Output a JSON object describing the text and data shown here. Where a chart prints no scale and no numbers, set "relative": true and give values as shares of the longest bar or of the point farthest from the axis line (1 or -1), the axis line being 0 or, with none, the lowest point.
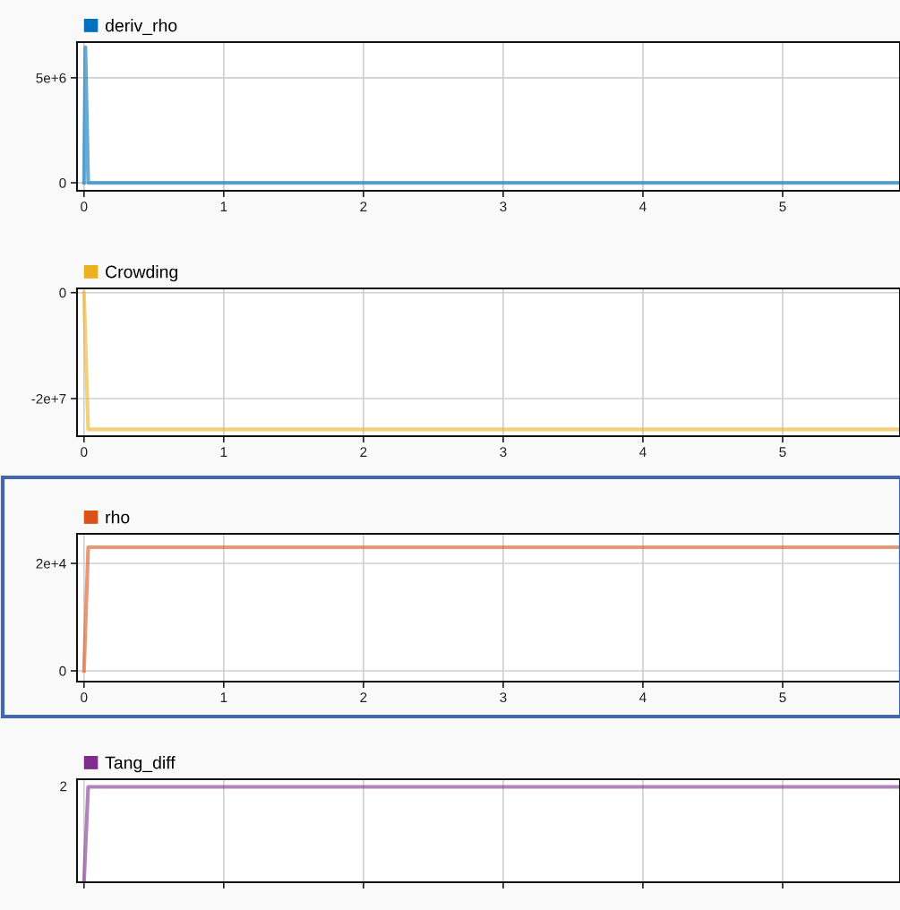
{
  "chart_data": [
    {
      "type": "line",
      "x": [
        0,
        0.01,
        0.03,
        5.84
      ],
      "xlim": [
        -0.05,
        5.84
      ],
      "xticks": [
        0,
        1,
        2,
        3,
        4,
        5
      ],
      "ylim": [
        -380000,
        6700000
      ],
      "yticks": [
        0,
        {
          "value": 5000000,
          "label": "5e+6"
        }
      ],
      "grid": true,
      "legend": "top left",
      "series": [
        {
          "name": "deriv_rho",
          "color": "#0072bd",
          "values": [
            0,
            6450000,
            0,
            0
          ]
        }
      ]
    },
    {
      "type": "line",
      "x": [
        0,
        0.03,
        5.84
      ],
      "xlim": [
        -0.05,
        5.84
      ],
      "xticks": [
        0,
        1,
        2,
        3,
        4,
        5
      ],
      "ylim": [
        -27100000,
        800000
      ],
      "yticks": [
        {
          "value": -20000000,
          "label": "-2e+7"
        },
        0
      ],
      "grid": true,
      "legend": "top left",
      "series": [
        {
          "name": "Crowding",
          "color": "#edb120",
          "values": [
            0,
            -25800000,
            -25800000
          ]
        }
      ]
    },
    {
      "type": "line",
      "x": [
        0,
        0.03,
        5.84
      ],
      "xlim": [
        -0.05,
        5.84
      ],
      "xticks": [
        0,
        1,
        2,
        3,
        4,
        5
      ],
      "ylim": [
        -2000,
        25500
      ],
      "yticks": [
        0,
        {
          "value": 20000,
          "label": "2e+4"
        }
      ],
      "grid": true,
      "legend": "top left",
      "series": [
        {
          "name": "rho",
          "color": "#d95319",
          "values": [
            0,
            23000,
            23000
          ]
        }
      ]
    },
    {
      "type": "line",
      "x": [
        0,
        0.03,
        5.84
      ],
      "xlim": [
        -0.05,
        5.84
      ],
      "xticks": [
        0,
        1,
        2,
        3,
        4,
        5
      ],
      "relative": true,
      "tick_labels": false,
      "grid": true,
      "legend": "top left",
      "annotations": [
        "2"
      ],
      "series": [
        {
          "name": "Tang_diff",
          "color": "#7e2f8e",
          "values": [
            0,
            1,
            1
          ]
        }
      ]
    }
  ]
}
